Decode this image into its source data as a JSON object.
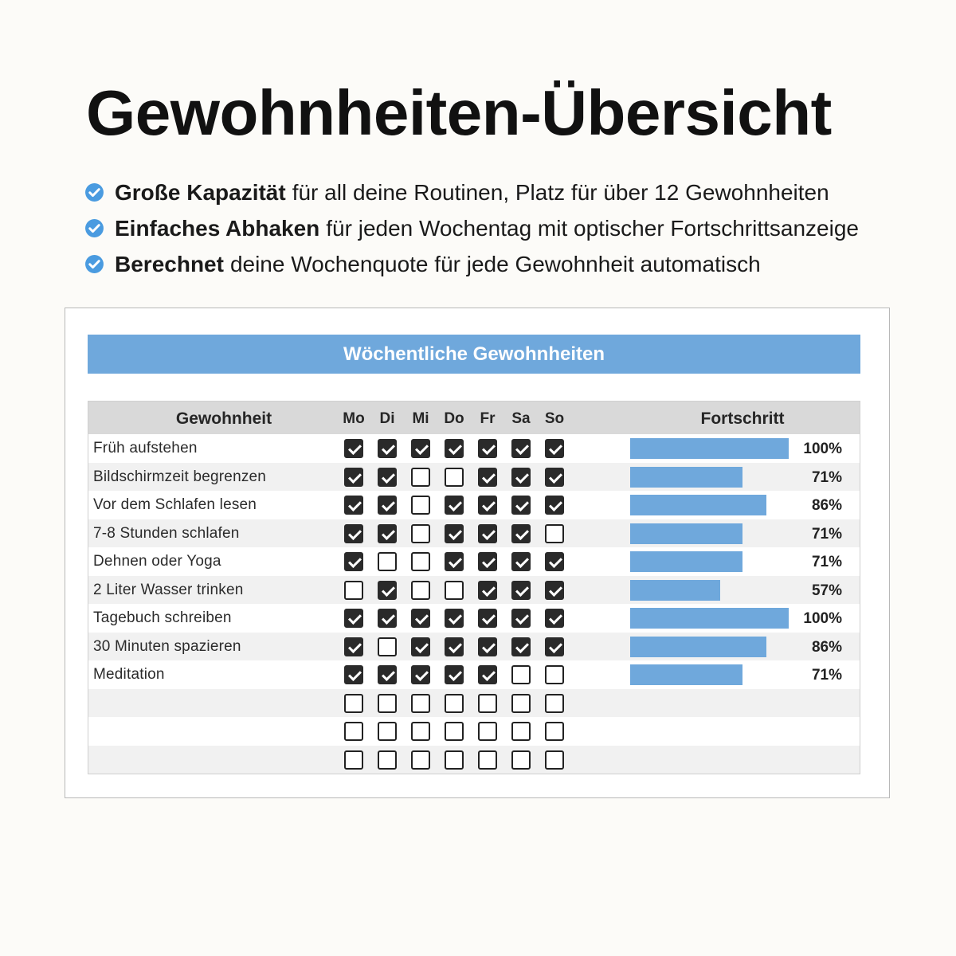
{
  "title": "Gewohnheiten-Übersicht",
  "features": [
    {
      "icon": "check-circle-icon",
      "bold": "Große Kapazität",
      "text": "für all deine Routinen, Platz für über 12 Gewohnheiten"
    },
    {
      "icon": "check-circle-icon",
      "bold": "Einfaches Abhaken",
      "text": "für jeden Wochentag mit optischer Fortschrittsanzeige"
    },
    {
      "icon": "check-circle-icon",
      "bold": "Berechnet",
      "text": "deine Wochenquote für jede Gewohnheit automatisch"
    }
  ],
  "colors": {
    "accent": "#6fa8dc",
    "icon": "#4a9be0",
    "header_bg": "#d9d9d9",
    "check": "#2a2a2a"
  },
  "tracker": {
    "title": "Wöchentliche Gewohnheiten",
    "col_habit": "Gewohnheit",
    "col_progress": "Fortschritt",
    "days": [
      "Mo",
      "Di",
      "Mi",
      "Do",
      "Fr",
      "Sa",
      "So"
    ],
    "rows": [
      {
        "name": "Früh aufstehen",
        "checks": [
          1,
          1,
          1,
          1,
          1,
          1,
          1
        ],
        "progress": 1.0,
        "pct": "100%"
      },
      {
        "name": "Bildschirmzeit begrenzen",
        "checks": [
          1,
          1,
          0,
          0,
          1,
          1,
          1
        ],
        "progress": 0.71,
        "pct": "71%"
      },
      {
        "name": "Vor dem Schlafen lesen",
        "checks": [
          1,
          1,
          0,
          1,
          1,
          1,
          1
        ],
        "progress": 0.86,
        "pct": "86%"
      },
      {
        "name": "7-8 Stunden schlafen",
        "checks": [
          1,
          1,
          0,
          1,
          1,
          1,
          0
        ],
        "progress": 0.71,
        "pct": "71%"
      },
      {
        "name": "Dehnen oder Yoga",
        "checks": [
          1,
          0,
          0,
          1,
          1,
          1,
          1
        ],
        "progress": 0.71,
        "pct": "71%"
      },
      {
        "name": "2 Liter Wasser trinken",
        "checks": [
          0,
          1,
          0,
          0,
          1,
          1,
          1
        ],
        "progress": 0.57,
        "pct": "57%"
      },
      {
        "name": "Tagebuch schreiben",
        "checks": [
          1,
          1,
          1,
          1,
          1,
          1,
          1
        ],
        "progress": 1.0,
        "pct": "100%"
      },
      {
        "name": "30 Minuten spazieren",
        "checks": [
          1,
          0,
          1,
          1,
          1,
          1,
          1
        ],
        "progress": 0.86,
        "pct": "86%"
      },
      {
        "name": "Meditation",
        "checks": [
          1,
          1,
          1,
          1,
          1,
          0,
          0
        ],
        "progress": 0.71,
        "pct": "71%"
      },
      {
        "name": "",
        "checks": [
          0,
          0,
          0,
          0,
          0,
          0,
          0
        ],
        "progress": null,
        "pct": ""
      },
      {
        "name": "",
        "checks": [
          0,
          0,
          0,
          0,
          0,
          0,
          0
        ],
        "progress": null,
        "pct": ""
      },
      {
        "name": "",
        "checks": [
          0,
          0,
          0,
          0,
          0,
          0,
          0
        ],
        "progress": null,
        "pct": ""
      }
    ]
  }
}
